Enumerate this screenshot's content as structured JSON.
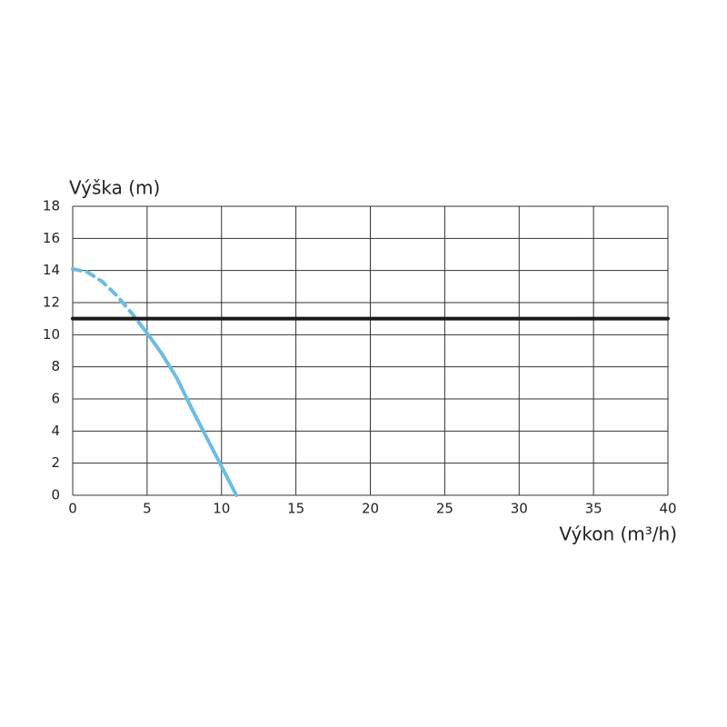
{
  "chart_data": {
    "type": "line",
    "y_label": "Výška (m)",
    "x_label": "Výkon (m³/h)",
    "xlim": [
      0,
      40
    ],
    "xticks": [
      0,
      5,
      10,
      15,
      20,
      25,
      30,
      35,
      40
    ],
    "ylim": [
      0,
      18
    ],
    "yticks": [
      0,
      2,
      4,
      6,
      8,
      10,
      12,
      14,
      16,
      18
    ],
    "grid": true,
    "series": [
      {
        "color": "#6bbde3",
        "dashed": true,
        "x": [
          0,
          1,
          2,
          3,
          4,
          4.5
        ],
        "values": [
          14.1,
          13.9,
          13.3,
          12.4,
          11.3,
          10.7
        ]
      },
      {
        "color": "#6bbde3",
        "x": [
          4.5,
          5,
          6,
          7,
          8,
          9,
          10,
          11
        ],
        "values": [
          10.7,
          10.1,
          8.8,
          7.3,
          5.4,
          3.6,
          1.8,
          0
        ]
      },
      {
        "color": "#1a1a1a",
        "x": [
          0,
          40
        ],
        "values": [
          11,
          11
        ]
      }
    ]
  }
}
